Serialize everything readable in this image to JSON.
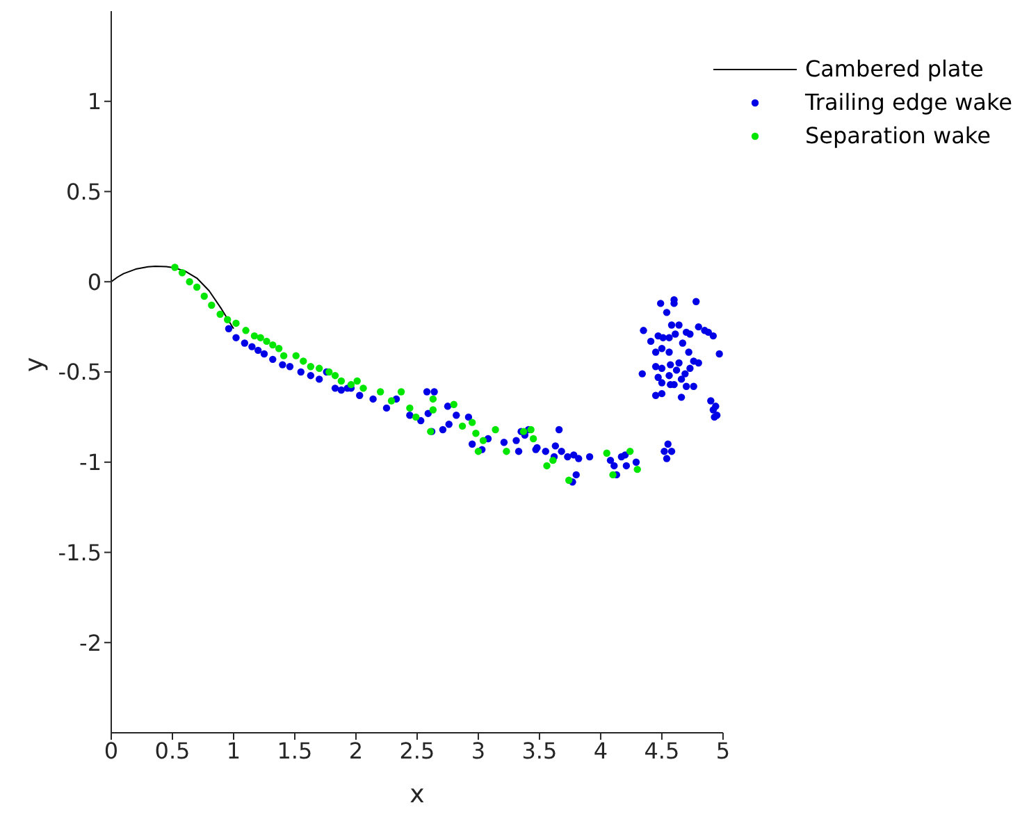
{
  "chart_data": {
    "type": "scatter",
    "xlabel": "x",
    "ylabel": "y",
    "xlim": [
      0,
      5
    ],
    "ylim": [
      -2.5,
      1.5
    ],
    "xticks": [
      0,
      0.5,
      1,
      1.5,
      2,
      2.5,
      3,
      3.5,
      4,
      4.5,
      5
    ],
    "yticks": [
      -2,
      -1.5,
      -1,
      -0.5,
      0,
      0.5,
      1
    ],
    "grid": false,
    "legend": "top right",
    "marker": "circle",
    "series": [
      {
        "name": "Cambered plate",
        "type": "line",
        "color": "#000000",
        "marker": "none",
        "line_style": "solid",
        "x": [
          0,
          0.05,
          0.1,
          0.2,
          0.3,
          0.36,
          0.45,
          0.51,
          0.6,
          0.7,
          0.8,
          0.9,
          1.0
        ],
        "values": [
          0,
          0.025,
          0.045,
          0.07,
          0.083,
          0.086,
          0.084,
          0.078,
          0.06,
          0.02,
          -0.05,
          -0.15,
          -0.26
        ]
      },
      {
        "name": "Trailing edge wake",
        "color": "#0000e6",
        "x": [
          0.96,
          1.02,
          1.09,
          1.15,
          1.2,
          1.25,
          1.32,
          1.4,
          1.46,
          1.55,
          1.63,
          1.7,
          1.76,
          1.83,
          1.88,
          1.93,
          1.96,
          2.03,
          2.14,
          2.25,
          2.33,
          2.44,
          2.53,
          2.58,
          2.59,
          2.64,
          2.62,
          2.71,
          2.75,
          2.76,
          2.82,
          2.92,
          2.95,
          3.03,
          3.08,
          3.21,
          3.31,
          3.33,
          3.35,
          3.38,
          3.41,
          3.47,
          3.48,
          3.55,
          3.62,
          3.63,
          3.66,
          3.68,
          3.73,
          3.77,
          3.78,
          3.8,
          3.82,
          3.91,
          4.08,
          4.11,
          4.13,
          4.17,
          4.2,
          4.21,
          4.29,
          4.34,
          4.35,
          4.41,
          4.45,
          4.45,
          4.45,
          4.47,
          4.47,
          4.49,
          4.5,
          4.5,
          4.5,
          4.5,
          4.51,
          4.52,
          4.54,
          4.54,
          4.55,
          4.56,
          4.56,
          4.56,
          4.57,
          4.57,
          4.58,
          4.58,
          4.6,
          4.6,
          4.6,
          4.61,
          4.62,
          4.64,
          4.64,
          4.66,
          4.66,
          4.67,
          4.69,
          4.7,
          4.7,
          4.72,
          4.73,
          4.73,
          4.76,
          4.76,
          4.78,
          4.8,
          4.8,
          4.85,
          4.88,
          4.9,
          4.92,
          4.92,
          4.93,
          4.94,
          4.95,
          4.97
        ],
        "values": [
          -0.26,
          -0.31,
          -0.34,
          -0.36,
          -0.38,
          -0.4,
          -0.43,
          -0.46,
          -0.47,
          -0.5,
          -0.52,
          -0.54,
          -0.5,
          -0.59,
          -0.6,
          -0.59,
          -0.59,
          -0.63,
          -0.65,
          -0.7,
          -0.65,
          -0.74,
          -0.77,
          -0.61,
          -0.73,
          -0.61,
          -0.83,
          -0.82,
          -0.69,
          -0.79,
          -0.74,
          -0.75,
          -0.9,
          -0.93,
          -0.87,
          -0.89,
          -0.88,
          -0.94,
          -0.83,
          -0.85,
          -0.82,
          -0.93,
          -0.92,
          -0.94,
          -0.97,
          -0.91,
          -0.82,
          -0.94,
          -0.97,
          -1.11,
          -0.96,
          -1.07,
          -0.98,
          -0.97,
          -0.99,
          -1.02,
          -1.07,
          -0.97,
          -0.96,
          -1.02,
          -1.0,
          -0.51,
          -0.27,
          -0.33,
          -0.39,
          -0.47,
          -0.63,
          -0.3,
          -0.53,
          -0.12,
          -0.37,
          -0.48,
          -0.56,
          -0.62,
          -0.31,
          -0.94,
          -0.17,
          -0.98,
          -0.9,
          -0.31,
          -0.39,
          -0.52,
          -0.46,
          -0.57,
          -0.24,
          -0.94,
          -0.1,
          -0.12,
          -0.57,
          -0.29,
          -0.49,
          -0.24,
          -0.45,
          -0.54,
          -0.64,
          -0.34,
          -0.51,
          -0.28,
          -0.58,
          -0.39,
          -0.29,
          -0.48,
          -0.44,
          -0.58,
          -0.11,
          -0.25,
          -0.45,
          -0.27,
          -0.28,
          -0.66,
          -0.3,
          -0.71,
          -0.75,
          -0.69,
          -0.74,
          -0.4
        ]
      },
      {
        "name": "Separation wake",
        "color": "#00e600",
        "x": [
          0.52,
          0.58,
          0.64,
          0.7,
          0.76,
          0.82,
          0.89,
          0.95,
          1.02,
          1.1,
          1.17,
          1.22,
          1.27,
          1.32,
          1.37,
          1.41,
          1.51,
          1.57,
          1.63,
          1.7,
          1.78,
          1.83,
          1.88,
          1.96,
          2.01,
          2.06,
          2.2,
          2.29,
          2.37,
          2.44,
          2.49,
          2.61,
          2.63,
          2.63,
          2.8,
          2.87,
          2.95,
          2.98,
          3.0,
          3.04,
          3.14,
          3.23,
          3.37,
          3.43,
          3.45,
          3.56,
          3.61,
          3.74,
          4.05,
          4.1,
          4.24,
          4.3
        ],
        "values": [
          0.08,
          0.05,
          0.0,
          -0.03,
          -0.08,
          -0.13,
          -0.18,
          -0.21,
          -0.23,
          -0.27,
          -0.3,
          -0.31,
          -0.33,
          -0.35,
          -0.37,
          -0.41,
          -0.41,
          -0.44,
          -0.47,
          -0.48,
          -0.5,
          -0.52,
          -0.55,
          -0.57,
          -0.55,
          -0.59,
          -0.61,
          -0.66,
          -0.61,
          -0.7,
          -0.75,
          -0.83,
          -0.65,
          -0.71,
          -0.68,
          -0.8,
          -0.78,
          -0.84,
          -0.94,
          -0.88,
          -0.82,
          -0.94,
          -0.83,
          -0.82,
          -0.87,
          -1.02,
          -0.99,
          -1.1,
          -0.95,
          -1.07,
          -0.94,
          -1.04
        ]
      }
    ]
  }
}
